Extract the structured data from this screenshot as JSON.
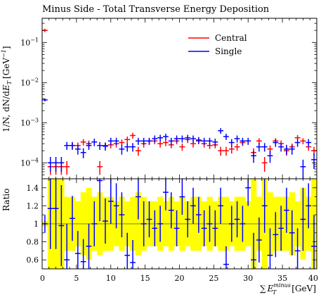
{
  "chart_data": [
    {
      "type": "scatter",
      "title": "Minus Side - Total Transverse Energy Deposition",
      "ylabel": "1/N, dN/dE_T [GeV^-1]",
      "ylabel_parts": {
        "main": "1/N, dN/d",
        "E": "E",
        "T": "T",
        "unit_open": "[GeV",
        "unit_exp": "−1",
        "unit_close": "]"
      },
      "y_scale": "log",
      "ylim": [
        4e-05,
        0.4
      ],
      "xlim": [
        0,
        40
      ],
      "yticks": [
        {
          "value": 0.1,
          "base": "10",
          "exp": "−1"
        },
        {
          "value": 0.01,
          "base": "10",
          "exp": "−2"
        },
        {
          "value": 0.001,
          "base": "10",
          "exp": "−3"
        },
        {
          "value": 0.0001,
          "base": "10",
          "exp": "−4"
        }
      ],
      "legend": {
        "placement": "top-right",
        "entries": [
          "Central",
          "Single"
        ]
      },
      "bin_width": 0.8,
      "series": [
        {
          "name": "Central",
          "color": "#ff0000",
          "x": [
            0.4,
            1.2,
            2.0,
            2.8,
            3.6,
            4.4,
            5.2,
            6.0,
            6.8,
            7.6,
            8.4,
            9.2,
            10.0,
            10.8,
            11.6,
            12.4,
            13.2,
            14.0,
            14.8,
            15.6,
            16.4,
            17.2,
            18.0,
            18.8,
            19.6,
            20.4,
            21.2,
            22.0,
            22.8,
            23.6,
            24.4,
            25.2,
            26.0,
            26.8,
            27.6,
            28.4,
            29.2,
            30.0,
            30.8,
            31.6,
            32.4,
            33.2,
            34.0,
            34.8,
            35.6,
            36.4,
            37.2,
            38.0,
            38.8,
            39.6
          ],
          "y": [
            0.2,
            8e-05,
            8e-05,
            8e-05,
            8e-05,
            0.00027,
            0.00027,
            0.00033,
            0.0003,
            0.00033,
            8e-05,
            0.00027,
            0.00028,
            0.0003,
            0.00032,
            0.00038,
            0.00048,
            0.0002,
            0.0003,
            0.00035,
            0.00035,
            0.0003,
            0.00032,
            0.00028,
            0.00035,
            0.00025,
            0.00038,
            0.0003,
            0.00035,
            0.0003,
            0.00027,
            0.00028,
            0.0002,
            0.0002,
            0.00022,
            0.00025,
            0.00032,
            0.00035,
            0.00018,
            0.00035,
            0.0001,
            0.00022,
            0.00035,
            0.0003,
            0.0002,
            0.00025,
            0.00042,
            0.00035,
            0.00025,
            0.0002
          ],
          "err": [
            0.02,
            3e-05,
            3e-05,
            3e-05,
            3e-05,
            5e-05,
            5e-05,
            6e-05,
            6e-05,
            6e-05,
            3e-05,
            5e-05,
            5e-05,
            6e-05,
            6e-05,
            7e-05,
            8e-05,
            5e-05,
            6e-05,
            6e-05,
            6e-05,
            6e-05,
            6e-05,
            5e-05,
            6e-05,
            5e-05,
            7e-05,
            6e-05,
            6e-05,
            6e-05,
            5e-05,
            5e-05,
            5e-05,
            5e-05,
            5e-05,
            5e-05,
            6e-05,
            6e-05,
            5e-05,
            6e-05,
            4e-05,
            5e-05,
            6e-05,
            6e-05,
            5e-05,
            5e-05,
            7e-05,
            6e-05,
            5e-05,
            5e-05
          ]
        },
        {
          "name": "Single",
          "color": "#0000ff",
          "x": [
            0.4,
            1.2,
            2.0,
            2.8,
            3.6,
            4.4,
            5.2,
            6.0,
            6.8,
            7.6,
            8.4,
            9.2,
            10.0,
            10.8,
            11.6,
            12.4,
            13.2,
            14.0,
            14.8,
            15.6,
            16.4,
            17.2,
            18.0,
            18.8,
            19.6,
            20.4,
            21.2,
            22.0,
            22.8,
            23.6,
            24.4,
            25.2,
            26.0,
            26.8,
            27.6,
            28.4,
            29.2,
            30.0,
            30.8,
            31.6,
            32.4,
            33.2,
            34.0,
            34.8,
            35.6,
            36.4,
            37.2,
            38.0,
            38.8,
            39.6
          ],
          "y": [
            0.0037,
            0.0001,
            0.0001,
            0.0001,
            0.00027,
            0.00027,
            0.00022,
            0.00018,
            0.00027,
            0.00033,
            0.00027,
            0.00026,
            0.00035,
            0.00035,
            0.00022,
            0.00025,
            0.00025,
            0.00035,
            0.00035,
            0.00035,
            0.0004,
            0.00042,
            0.00045,
            0.00035,
            0.0004,
            0.0004,
            0.00042,
            0.0004,
            0.00037,
            0.00035,
            0.00035,
            0.00033,
            0.00063,
            0.00045,
            0.00032,
            0.0004,
            0.00035,
            0.00035,
            0.00015,
            0.00025,
            0.00025,
            0.00015,
            0.00032,
            0.00025,
            0.00022,
            0.00022,
            0.00032,
            8e-05,
            0.00032,
            0.00012
          ],
          "err": [
            0.0003,
            4e-05,
            4e-05,
            4e-05,
            6e-05,
            6e-05,
            6e-05,
            5e-05,
            6e-05,
            7e-05,
            6e-05,
            6e-05,
            7e-05,
            7e-05,
            6e-05,
            6e-05,
            6e-05,
            7e-05,
            7e-05,
            7e-05,
            8e-05,
            8e-05,
            8e-05,
            7e-05,
            8e-05,
            8e-05,
            8e-05,
            8e-05,
            7e-05,
            7e-05,
            7e-05,
            7e-05,
            0.0001,
            8e-05,
            7e-05,
            8e-05,
            7e-05,
            7e-05,
            5e-05,
            6e-05,
            6e-05,
            5e-05,
            7e-05,
            6e-05,
            6e-05,
            6e-05,
            7e-05,
            4e-05,
            7e-05,
            5e-05
          ]
        }
      ]
    },
    {
      "type": "scatter",
      "ylabel": "Ratio",
      "xlabel_parts": {
        "sum": "∑",
        "E": "E",
        "sup": "minus",
        "sub": "T",
        "unit": "[GeV]"
      },
      "xlim": [
        0,
        40
      ],
      "ylim": [
        0.5,
        1.5
      ],
      "xticks": [
        "0",
        "5",
        "10",
        "15",
        "20",
        "25",
        "30",
        "35",
        "40"
      ],
      "yticks": [
        "0.6",
        "0.8",
        "1",
        "1.2",
        "1.4"
      ],
      "reference_line": 1.0,
      "band_color": "#ffff00",
      "band_halfwidth": [
        0.03,
        1.0,
        1.0,
        0.5,
        0.3,
        0.3,
        0.25,
        0.35,
        0.4,
        0.3,
        0.35,
        0.3,
        0.3,
        0.25,
        0.3,
        0.25,
        0.3,
        0.35,
        0.3,
        0.25,
        0.25,
        0.3,
        0.25,
        0.3,
        0.25,
        0.3,
        0.25,
        0.3,
        0.3,
        0.25,
        0.3,
        0.25,
        0.3,
        0.3,
        0.25,
        0.3,
        0.3,
        0.25,
        0.5,
        0.3,
        0.5,
        0.35,
        0.3,
        0.3,
        0.3,
        0.35,
        0.25,
        0.4,
        0.3,
        0.5
      ],
      "ratio_values": [
        1.0,
        1.17,
        1.17,
        0.98,
        0.6,
        1.06,
        0.67,
        0.58,
        0.75,
        1.0,
        1.48,
        1.03,
        1.25,
        1.2,
        1.1,
        0.65,
        0.57,
        1.3,
        1.0,
        1.05,
        0.95,
        1.0,
        1.35,
        1.15,
        0.95,
        1.3,
        1.05,
        1.2,
        1.1,
        0.95,
        1.0,
        0.95,
        1.2,
        0.55,
        1.0,
        1.05,
        1.0,
        1.4,
        0.6,
        0.82,
        1.2,
        0.65,
        0.88,
        0.95,
        1.15,
        0.9,
        0.7,
        1.05,
        1.2,
        0.75
      ],
      "ratio_err": [
        0.1,
        0.45,
        0.45,
        0.45,
        0.4,
        0.25,
        0.25,
        0.25,
        0.25,
        0.25,
        0.45,
        0.25,
        0.25,
        0.25,
        0.25,
        0.25,
        0.25,
        0.25,
        0.25,
        0.2,
        0.2,
        0.2,
        0.2,
        0.2,
        0.2,
        0.2,
        0.2,
        0.2,
        0.2,
        0.2,
        0.2,
        0.2,
        0.2,
        0.2,
        0.2,
        0.2,
        0.2,
        0.2,
        0.3,
        0.25,
        0.3,
        0.3,
        0.25,
        0.25,
        0.25,
        0.25,
        0.25,
        0.35,
        0.25,
        0.35
      ],
      "ratio_color": "#0000ff"
    }
  ]
}
